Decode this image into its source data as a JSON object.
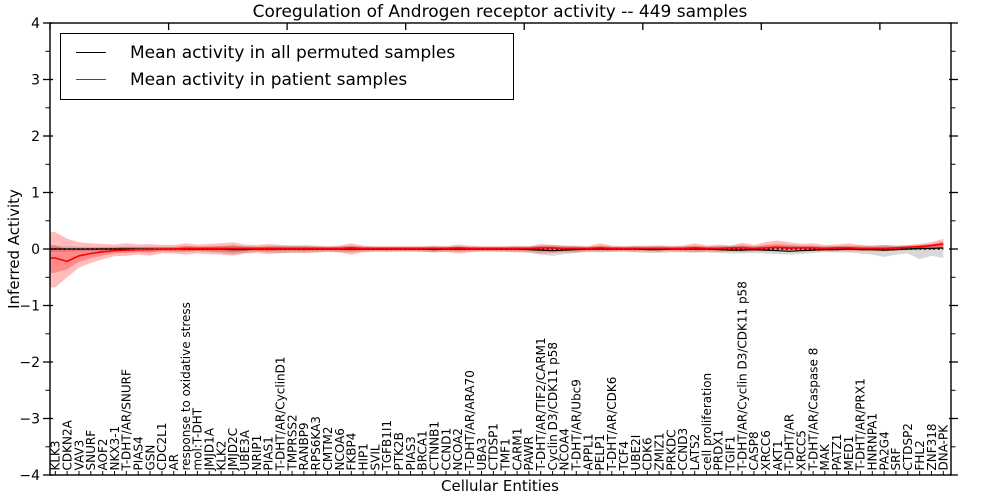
{
  "chart_data": {
    "type": "line",
    "title": "Coregulation of Androgen receptor activity -- 449 samples",
    "xlabel": "Cellular Entities",
    "ylabel": "Inferred Activity",
    "ylim": [
      -4,
      4
    ],
    "y_tick_labels": [
      "−4",
      "−3",
      "−2",
      "−1",
      "0",
      "1",
      "2",
      "3",
      "4"
    ],
    "grid": false,
    "legend": {
      "position": "upper left",
      "entries": [
        {
          "label": "Mean activity in all permuted samples",
          "color": "#000000"
        },
        {
          "label": "Mean activity in patient samples",
          "color": "#ff0000"
        }
      ]
    },
    "zero_line": {
      "style": "dotted",
      "color": "#000000",
      "y": 0
    },
    "categories": [
      "KLK3",
      "CDKN2A",
      "VAV3",
      "SNURF",
      "AOF2",
      "NKX3-1",
      "T-DHT/AR/SNURF",
      "PIAS4",
      "GSN",
      "CDC2L1",
      "AR",
      "response to oxidative stress",
      "mol:T-DHT",
      "JMJD1A",
      "KLK2",
      "JMJD2C",
      "UBE3A",
      "NRIP1",
      "PIAS1",
      "T-DHT/AR/CyclinD1",
      "TMPRSS2",
      "RANBP9",
      "RPS6KA3",
      "CMTM2",
      "NCOA6",
      "FKBP4",
      "HIP1",
      "SVIL",
      "TGFB1I1",
      "PTK2B",
      "PIAS3",
      "BRCA1",
      "CTNNB1",
      "CCND1",
      "NCOA2",
      "T-DHT/AR/ARA70",
      "UBA3",
      "CTDSP1",
      "TMF1",
      "CARM1",
      "PAWR",
      "T-DHT/AR/TIF2/CARM1",
      "Cyclin D3/CDK11 p58",
      "NCOA4",
      "T-DHT/AR/Ubc9",
      "APPL1",
      "PELP1",
      "T-DHT/AR/CDK6",
      "TCF4",
      "UBE2I",
      "CDK6",
      "ZMIZ1",
      "PRKDC",
      "CCND3",
      "LATS2",
      "cell proliferation",
      "PRDX1",
      "TGIF1",
      "T-DHT/AR/Cyclin D3/CDK11 p58",
      "CASP8",
      "XRCC6",
      "AKT1",
      "T-DHT/AR",
      "XRCC5",
      "T-DHT/AR/Caspase 8",
      "MAK",
      "PATZ1",
      "MED1",
      "T-DHT/AR/PRX1",
      "HNRNPA1",
      "PA2G4",
      "SRF",
      "CTDSP2",
      "FHL2",
      "ZNF318",
      "DNA-PK"
    ],
    "series": [
      {
        "name": "Mean activity in all permuted samples",
        "color": "#000000",
        "band_color": "#999999",
        "values": [
          0,
          0,
          0,
          0,
          0,
          0,
          0,
          0,
          0,
          0,
          0,
          0,
          0,
          0,
          0,
          -0.01,
          -0.01,
          0,
          0,
          0,
          0,
          0,
          0,
          0,
          0,
          0,
          0,
          0,
          0,
          0,
          0,
          0,
          -0.01,
          0,
          0,
          0,
          0,
          0,
          0,
          0,
          -0.01,
          -0.02,
          -0.03,
          -0.02,
          -0.01,
          0,
          0,
          0,
          0,
          0,
          -0.01,
          -0.01,
          0,
          0,
          0,
          0,
          -0.01,
          -0.02,
          -0.02,
          -0.01,
          -0.02,
          -0.03,
          -0.04,
          -0.03,
          -0.02,
          -0.01,
          -0.01,
          0,
          -0.01,
          -0.01,
          -0.02,
          -0.01,
          0,
          0.01,
          0.01,
          0.02
        ],
        "band_upper": [
          0.05,
          0.05,
          0.04,
          0.04,
          0.04,
          0.04,
          0.04,
          0.04,
          0.04,
          0.04,
          0.04,
          0.05,
          0.04,
          0.04,
          0.05,
          0.06,
          0.05,
          0.04,
          0.05,
          0.06,
          0.06,
          0.05,
          0.05,
          0.04,
          0.05,
          0.05,
          0.04,
          0.04,
          0.04,
          0.04,
          0.04,
          0.04,
          0.05,
          0.04,
          0.04,
          0.04,
          0.04,
          0.04,
          0.04,
          0.04,
          0.05,
          0.06,
          0.07,
          0.06,
          0.05,
          0.04,
          0.05,
          0.04,
          0.04,
          0.05,
          0.06,
          0.06,
          0.05,
          0.05,
          0.05,
          0.05,
          0.05,
          0.06,
          0.06,
          0.05,
          0.06,
          0.06,
          0.06,
          0.06,
          0.05,
          0.05,
          0.05,
          0.05,
          0.06,
          0.06,
          0.07,
          0.06,
          0.06,
          0.07,
          0.08,
          0.1
        ],
        "band_lower": [
          -0.05,
          -0.05,
          -0.04,
          -0.04,
          -0.04,
          -0.04,
          -0.04,
          -0.04,
          -0.04,
          -0.04,
          -0.05,
          -0.05,
          -0.04,
          -0.05,
          -0.07,
          -0.09,
          -0.07,
          -0.05,
          -0.06,
          -0.07,
          -0.07,
          -0.06,
          -0.06,
          -0.05,
          -0.06,
          -0.06,
          -0.05,
          -0.04,
          -0.05,
          -0.04,
          -0.04,
          -0.05,
          -0.06,
          -0.05,
          -0.05,
          -0.04,
          -0.04,
          -0.04,
          -0.05,
          -0.05,
          -0.07,
          -0.1,
          -0.12,
          -0.09,
          -0.07,
          -0.05,
          -0.06,
          -0.05,
          -0.05,
          -0.06,
          -0.07,
          -0.07,
          -0.06,
          -0.06,
          -0.06,
          -0.06,
          -0.07,
          -0.08,
          -0.08,
          -0.07,
          -0.08,
          -0.09,
          -0.1,
          -0.09,
          -0.07,
          -0.06,
          -0.06,
          -0.06,
          -0.08,
          -0.1,
          -0.14,
          -0.1,
          -0.08,
          -0.18,
          -0.12,
          -0.16
        ]
      },
      {
        "name": "Mean activity in patient samples",
        "color": "#ff0000",
        "band_color": "#ff0000",
        "inner_band_fraction": 0.5,
        "values": [
          -0.16,
          -0.22,
          -0.12,
          -0.08,
          -0.05,
          -0.03,
          -0.02,
          -0.01,
          -0.01,
          0,
          0,
          0.01,
          0.01,
          0.01,
          0.01,
          0.01,
          0.01,
          0.01,
          0.01,
          0.01,
          0.01,
          0.01,
          0.01,
          0.01,
          0.01,
          0.02,
          0.01,
          0.01,
          0.01,
          0.01,
          0.01,
          0.01,
          0.01,
          0.01,
          0.02,
          0.01,
          0.01,
          0.01,
          0.01,
          0.01,
          0.01,
          0.02,
          0.02,
          0.01,
          0.01,
          0.01,
          0.02,
          0.01,
          0.01,
          0.01,
          0.01,
          0.01,
          0.01,
          0.01,
          0.02,
          0.01,
          0.01,
          0.02,
          0.02,
          0.01,
          0.02,
          0.03,
          0.02,
          0.02,
          0.02,
          0.01,
          0.02,
          0.02,
          0.01,
          0.01,
          0.01,
          0.02,
          0.03,
          0.04,
          0.06,
          0.09
        ],
        "band_upper": [
          0.3,
          0.18,
          0.12,
          0.1,
          0.09,
          0.08,
          0.1,
          0.08,
          0.09,
          0.07,
          0.07,
          0.1,
          0.08,
          0.09,
          0.1,
          0.12,
          0.08,
          0.07,
          0.09,
          0.07,
          0.06,
          0.07,
          0.06,
          0.05,
          0.06,
          0.1,
          0.06,
          0.05,
          0.05,
          0.05,
          0.05,
          0.05,
          0.06,
          0.05,
          0.08,
          0.06,
          0.05,
          0.05,
          0.05,
          0.06,
          0.05,
          0.09,
          0.07,
          0.06,
          0.06,
          0.05,
          0.1,
          0.06,
          0.05,
          0.06,
          0.05,
          0.06,
          0.05,
          0.06,
          0.1,
          0.06,
          0.08,
          0.06,
          0.11,
          0.07,
          0.12,
          0.15,
          0.12,
          0.09,
          0.1,
          0.07,
          0.08,
          0.1,
          0.07,
          0.06,
          0.07,
          0.06,
          0.07,
          0.09,
          0.12,
          0.18
        ],
        "band_lower": [
          -0.68,
          -0.5,
          -0.33,
          -0.25,
          -0.18,
          -0.13,
          -0.12,
          -0.1,
          -0.12,
          -0.08,
          -0.08,
          -0.1,
          -0.08,
          -0.09,
          -0.1,
          -0.12,
          -0.08,
          -0.07,
          -0.09,
          -0.07,
          -0.06,
          -0.07,
          -0.06,
          -0.05,
          -0.06,
          -0.1,
          -0.06,
          -0.05,
          -0.05,
          -0.05,
          -0.05,
          -0.05,
          -0.06,
          -0.05,
          -0.08,
          -0.06,
          -0.05,
          -0.05,
          -0.05,
          -0.06,
          -0.05,
          -0.08,
          -0.07,
          -0.06,
          -0.06,
          -0.05,
          -0.05,
          -0.05,
          -0.04,
          -0.05,
          -0.04,
          -0.05,
          -0.04,
          -0.05,
          -0.06,
          -0.05,
          -0.05,
          -0.04,
          -0.05,
          -0.04,
          -0.04,
          -0.03,
          -0.04,
          -0.04,
          -0.04,
          -0.04,
          -0.04,
          -0.04,
          -0.04,
          -0.04,
          -0.04,
          -0.03,
          -0.02,
          -0.02,
          -0.01,
          0.0
        ]
      }
    ]
  },
  "colors": {
    "frame": "#000000",
    "background": "#ffffff",
    "permuted_band_fill": "#bbbbbb",
    "patient_band_fill": "#ff0000"
  }
}
